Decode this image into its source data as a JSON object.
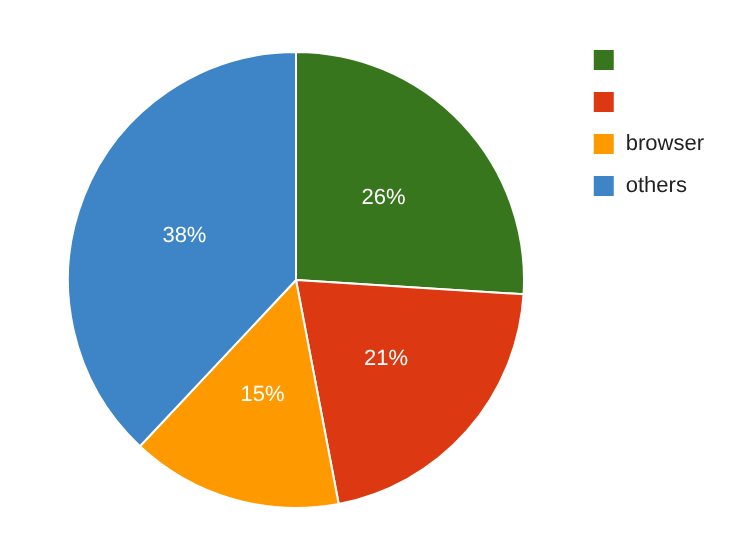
{
  "chart_data": {
    "type": "pie",
    "categories": [
      null,
      null,
      "browser",
      "others"
    ],
    "values": [
      26,
      21,
      15,
      38
    ],
    "value_labels": [
      "26%",
      "21%",
      "15%",
      "38%"
    ],
    "colors": [
      "#38761d",
      "#dc3912",
      "#ff9900",
      "#3d85c6"
    ],
    "legend": "top right"
  }
}
